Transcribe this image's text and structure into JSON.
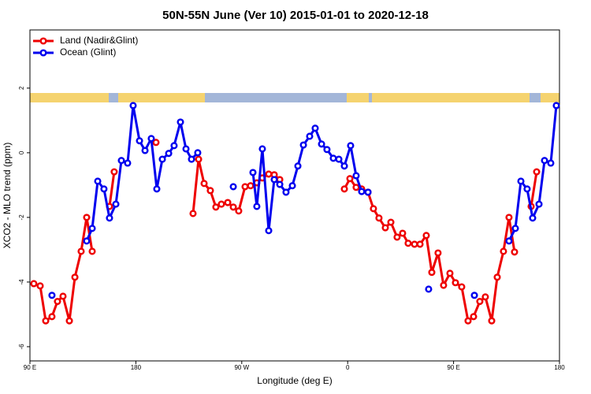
{
  "chart_data": {
    "type": "line",
    "title": "50N-55N June (Ver 10)   2015-01-01 to 2020-12-18",
    "x_label": "Longitude (deg E)",
    "y_label": "XCO2 - MLO trend (ppm)",
    "xlim": [
      90,
      540
    ],
    "xticks": [
      {
        "value": 90,
        "label": "90 E"
      },
      {
        "value": 180,
        "label": "180"
      },
      {
        "value": 270,
        "label": "90 W"
      },
      {
        "value": 360,
        "label": "0"
      },
      {
        "value": 450,
        "label": "90 E"
      },
      {
        "value": 540,
        "label": "180"
      }
    ],
    "ylim": [
      -6.44,
      3.8
    ],
    "yticks": [
      -6,
      -4,
      -2,
      0,
      2
    ],
    "legend": "top-left",
    "series": [
      {
        "name": "Land (Nadir&Glint)",
        "color": "#ee0000",
        "x": [
          93.3,
          98.7,
          103.4,
          108.7,
          113.4,
          118.1,
          123.5,
          128.2,
          133.5,
          138.2,
          142.9,
          null,
          157.6,
          161.6,
          null,
          197.1,
          null,
          228.6,
          233.3,
          238,
          243.3,
          248,
          252.7,
          258.1,
          262.8,
          267.4,
          272.8,
          277.5,
          282.8,
          287.5,
          292.9,
          297.6,
          302.3,
          null,
          357.2,
          361.9,
          367.2,
          371.9,
          377.3,
          381.9,
          386.6,
          392,
          396.7,
          402,
          406.7,
          411.4,
          416.8,
          421.5,
          426.8,
          431.5,
          436.8,
          441.5,
          446.9,
          451.6,
          456.9,
          462.3,
          467,
          472.3,
          477,
          482.4,
          487.1,
          492.4,
          497.1,
          501.8,
          null,
          515.9,
          520.6
        ],
        "values": [
          -4.05,
          -4.12,
          -5.2,
          -5.07,
          -4.6,
          -4.44,
          -5.2,
          -3.85,
          -3.05,
          -2.0,
          -3.05,
          null,
          -1.66,
          -0.59,
          null,
          0.32,
          null,
          -1.88,
          -0.2,
          -0.95,
          -1.17,
          -1.68,
          -1.59,
          -1.54,
          -1.68,
          -1.8,
          -1.05,
          -1.02,
          -0.93,
          -0.78,
          -0.66,
          -0.68,
          -0.83,
          null,
          -1.12,
          -0.8,
          -1.07,
          -1.12,
          -1.22,
          -1.73,
          -2.02,
          -2.32,
          -2.15,
          -2.61,
          -2.49,
          -2.8,
          -2.83,
          -2.83,
          -2.56,
          -3.7,
          -3.1,
          -4.1,
          -3.73,
          -4.02,
          -4.15,
          -5.2,
          -5.07,
          -4.6,
          -4.46,
          -5.2,
          -3.85,
          -3.05,
          -2.0,
          -3.07,
          null,
          -1.66,
          -0.59
        ]
      },
      {
        "name": "Ocean (Glint)",
        "color": "#0000ee",
        "x": [
          108.7,
          null,
          138.2,
          142.9,
          147.6,
          152.9,
          157.6,
          163,
          167.7,
          173,
          177.7,
          183.1,
          187.8,
          193.1,
          197.8,
          202.5,
          207.9,
          212.5,
          217.9,
          222.6,
          227.3,
          232.6,
          null,
          262.8,
          null,
          279.5,
          282.8,
          287.5,
          292.9,
          297.6,
          302.3,
          307.6,
          313,
          317.7,
          322.4,
          327.7,
          332.4,
          337.8,
          342.4,
          347.8,
          352.5,
          357.2,
          362.5,
          367.2,
          371.9,
          377.3,
          null,
          428.8,
          null,
          467.7,
          null,
          497.1,
          502.5,
          507.2,
          512.5,
          517.2,
          522.6,
          527.3,
          532.6,
          537.3
        ],
        "values": [
          -4.41,
          null,
          -2.73,
          -2.34,
          -0.88,
          -1.12,
          -2.02,
          -1.59,
          -0.24,
          -0.32,
          1.46,
          0.37,
          0.07,
          0.44,
          -1.12,
          -0.2,
          -0.02,
          0.22,
          0.95,
          0.12,
          -0.2,
          0,
          null,
          -1.05,
          null,
          -0.61,
          -1.66,
          0.12,
          -2.41,
          -0.83,
          -0.98,
          -1.22,
          -1.02,
          -0.41,
          0.24,
          0.51,
          0.76,
          0.27,
          0.1,
          -0.17,
          -0.2,
          -0.41,
          0.22,
          -0.71,
          -1.2,
          -1.22,
          null,
          -4.22,
          null,
          -4.41,
          null,
          -2.73,
          -2.34,
          -0.88,
          -1.12,
          -2.02,
          -1.59,
          -0.24,
          -0.32,
          1.46
        ]
      }
    ]
  }
}
